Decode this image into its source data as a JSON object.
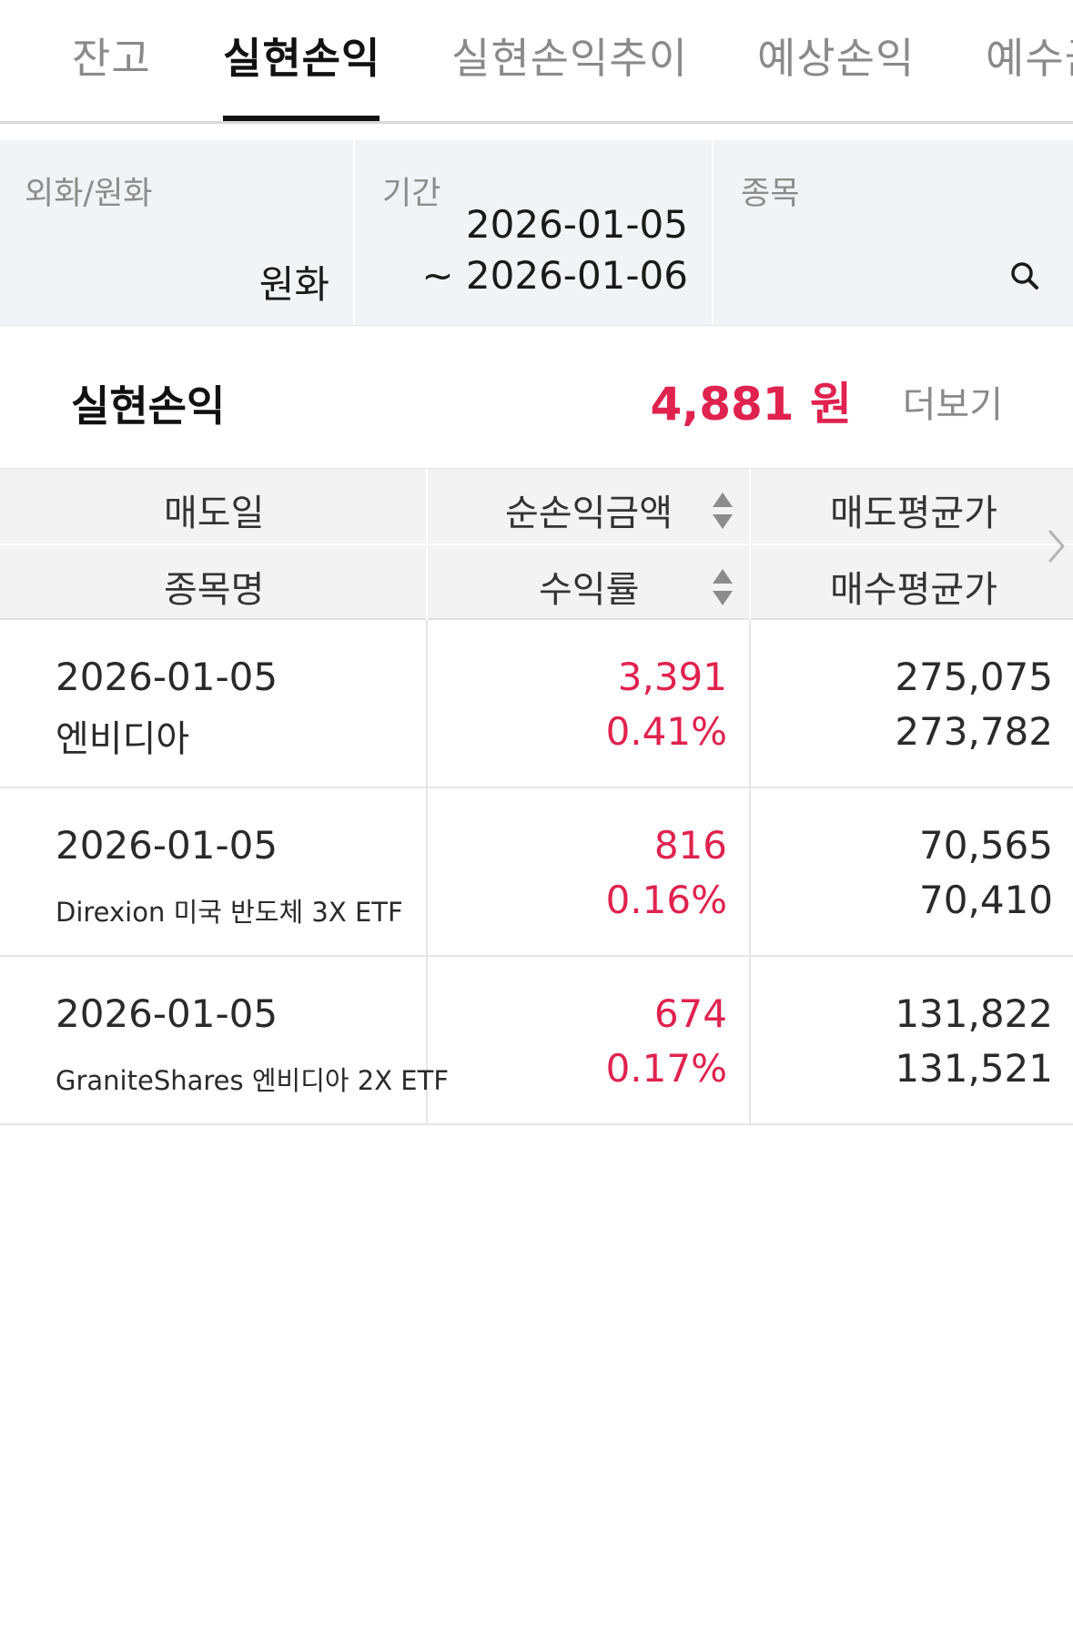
{
  "tabs": [
    {
      "label": "잔고",
      "active": false
    },
    {
      "label": "실현손익",
      "active": true
    },
    {
      "label": "실현손익추이",
      "active": false
    },
    {
      "label": "예상손익",
      "active": false
    },
    {
      "label": "예수금",
      "active": false
    }
  ],
  "filters": {
    "currency": {
      "label": "외화/원화",
      "value": "원화"
    },
    "period": {
      "label": "기간",
      "from": "2026-01-05",
      "to": "~ 2026-01-06"
    },
    "stock": {
      "label": "종목",
      "icon": "search-icon"
    }
  },
  "summary": {
    "title": "실현손익",
    "amount": "4,881 원",
    "more_label": "더보기"
  },
  "table": {
    "headers": {
      "sell_date": "매도일",
      "net_pnl": "순손익금액",
      "sell_avg": "매도평균가",
      "stock_name": "종목명",
      "return_rate": "수익률",
      "buy_avg": "매수평균가"
    },
    "rows": [
      {
        "date": "2026-01-05",
        "name": "엔비디아",
        "pnl": "3,391",
        "rate": "0.41%",
        "sell_avg": "275,075",
        "buy_avg": "273,782"
      },
      {
        "date": "2026-01-05",
        "name": "Direxion 미국 반도체 3X ETF",
        "pnl": "816",
        "rate": "0.16%",
        "sell_avg": "70,565",
        "buy_avg": "70,410"
      },
      {
        "date": "2026-01-05",
        "name": "GraniteShares 엔비디아 2X ETF",
        "pnl": "674",
        "rate": "0.17%",
        "sell_avg": "131,822",
        "buy_avg": "131,521"
      }
    ]
  },
  "colors": {
    "accent_red": "#e0224e",
    "active_tab": "#111111",
    "inactive_tab": "#8a8a8a",
    "filter_bg": "#f2f3f6"
  }
}
